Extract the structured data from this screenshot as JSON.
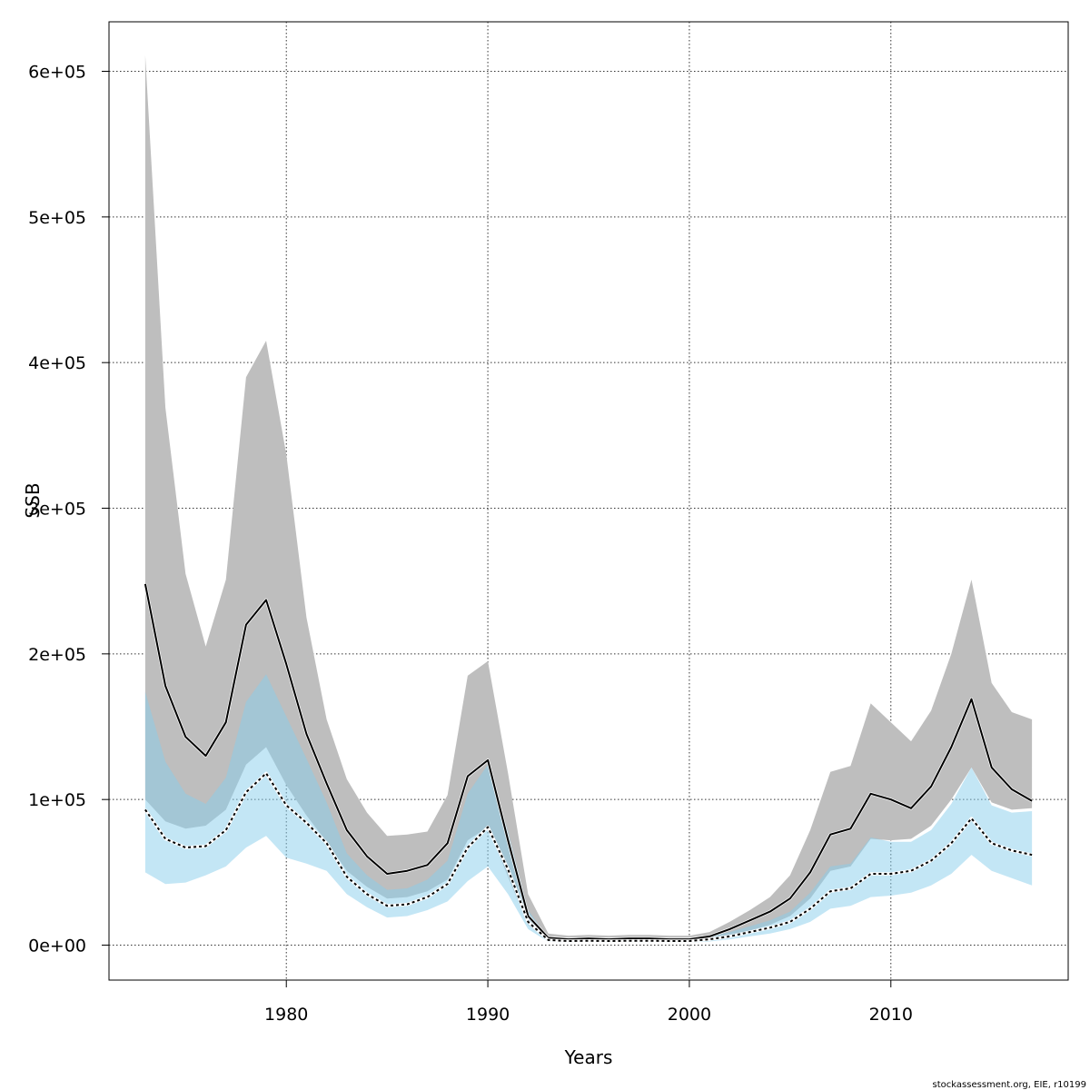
{
  "chart_data": {
    "type": "line",
    "xlabel": "Years",
    "ylabel": "SSB",
    "xlim": [
      1971.2,
      2018.8
    ],
    "ylim": [
      -24000,
      634000
    ],
    "x_ticks": [
      1980,
      1990,
      2000,
      2010
    ],
    "x_tick_labels": [
      "1980",
      "1990",
      "2000",
      "2010"
    ],
    "y_ticks": [
      0,
      100000,
      200000,
      300000,
      400000,
      500000,
      600000
    ],
    "y_tick_labels": [
      "0e+00",
      "1e+05",
      "2e+05",
      "3e+05",
      "4e+05",
      "5e+05",
      "6e+05"
    ],
    "grid": true,
    "colors": {
      "band_grey": "#bebebe",
      "band_blue": "#87ceeb",
      "line": "#000000"
    },
    "x": [
      1973,
      1974,
      1975,
      1976,
      1977,
      1978,
      1979,
      1980,
      1981,
      1982,
      1983,
      1984,
      1985,
      1986,
      1987,
      1988,
      1989,
      1990,
      1991,
      1992,
      1993,
      1994,
      1995,
      1996,
      1997,
      1998,
      1999,
      2000,
      2001,
      2002,
      2003,
      2004,
      2005,
      2006,
      2007,
      2008,
      2009,
      2010,
      2011,
      2012,
      2013,
      2014,
      2015,
      2016,
      2017
    ],
    "series": [
      {
        "style": "solid",
        "band_color": "grey",
        "values": [
          248000,
          178000,
          143000,
          130000,
          153000,
          220000,
          237000,
          193000,
          145000,
          111000,
          79000,
          61000,
          49000,
          51000,
          55000,
          70000,
          116000,
          127000,
          72000,
          20000,
          5000,
          4000,
          4500,
          4000,
          4500,
          4500,
          4000,
          4000,
          6000,
          11000,
          17000,
          23000,
          32000,
          50000,
          76000,
          80000,
          104000,
          100000,
          94000,
          109000,
          136000,
          169000,
          122000,
          107000,
          99000
        ],
        "lower": [
          100000,
          85000,
          80000,
          82000,
          93000,
          124000,
          136000,
          110000,
          89000,
          71000,
          51000,
          40000,
          32000,
          33000,
          37000,
          45000,
          72000,
          81000,
          47000,
          14000,
          3000,
          2500,
          2800,
          2500,
          2800,
          2800,
          2500,
          2500,
          4000,
          7000,
          10000,
          14000,
          20000,
          32000,
          51000,
          54000,
          73000,
          72000,
          73000,
          82000,
          100000,
          122000,
          98000,
          93000,
          94000
        ],
        "upper": [
          611000,
          369000,
          255000,
          205000,
          251000,
          390000,
          415000,
          337000,
          225000,
          155000,
          114000,
          91000,
          75000,
          76000,
          78000,
          103000,
          185000,
          195000,
          118000,
          35000,
          8000,
          6500,
          7000,
          6500,
          7000,
          7000,
          6500,
          6500,
          9000,
          16000,
          24000,
          33000,
          48000,
          79000,
          119000,
          123000,
          166000,
          153000,
          140000,
          161000,
          200000,
          251000,
          180000,
          160000,
          155000
        ]
      },
      {
        "style": "dotted",
        "band_color": "blue",
        "values": [
          93000,
          73000,
          67000,
          68000,
          79000,
          105000,
          118000,
          96000,
          84000,
          70000,
          47000,
          35000,
          27000,
          28000,
          33000,
          42000,
          67000,
          81000,
          52000,
          16000,
          3500,
          2800,
          3000,
          2800,
          3000,
          3000,
          2800,
          2800,
          4000,
          6000,
          9000,
          12000,
          16000,
          25000,
          37000,
          39000,
          49000,
          49000,
          51000,
          58000,
          70000,
          87000,
          70000,
          65000,
          62000
        ],
        "lower": [
          50000,
          42000,
          43000,
          48000,
          54000,
          67000,
          75000,
          60000,
          56000,
          51000,
          35000,
          26000,
          19000,
          20000,
          24000,
          30000,
          44000,
          54000,
          35000,
          11000,
          2300,
          1800,
          2000,
          1800,
          2000,
          2000,
          1800,
          1800,
          2500,
          4000,
          6000,
          8000,
          11000,
          16000,
          25000,
          27000,
          33000,
          34000,
          36000,
          41000,
          49000,
          62000,
          51000,
          46000,
          41000
        ],
        "upper": [
          174000,
          126000,
          104000,
          97000,
          115000,
          167000,
          186000,
          157000,
          128000,
          98000,
          63000,
          48000,
          38000,
          39000,
          45000,
          58000,
          104000,
          124000,
          78000,
          24000,
          5000,
          4000,
          4500,
          4000,
          4500,
          4500,
          4000,
          4000,
          6000,
          9000,
          13000,
          17000,
          23000,
          36000,
          54000,
          56000,
          74000,
          71000,
          71000,
          79000,
          97000,
          122000,
          96000,
          91000,
          92000
        ]
      }
    ],
    "credit": "stockassessment.org, EIE, r10199"
  }
}
